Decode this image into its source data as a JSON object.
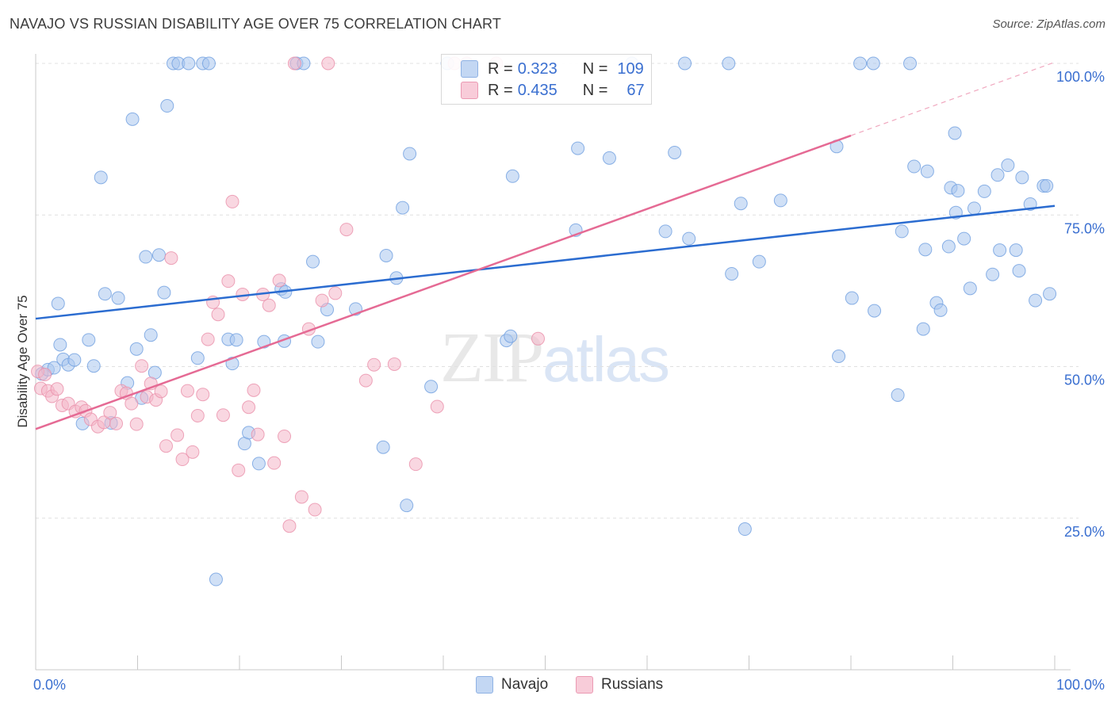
{
  "title": "NAVAJO VS RUSSIAN DISABILITY AGE OVER 75 CORRELATION CHART",
  "source": "Source: ZipAtlas.com",
  "watermark": {
    "zip": "ZIP",
    "atlas": "atlas"
  },
  "legend_top": {
    "rows": [
      {
        "r_label": "R =",
        "r_value": "0.323",
        "n_label": "N =",
        "n_value": "109",
        "color": "#a9c6ee"
      },
      {
        "r_label": "R =",
        "r_value": "0.435",
        "n_label": "N =",
        "n_value": "67",
        "color": "#f4b6c8"
      }
    ]
  },
  "legend_bottom": [
    {
      "label": "Navajo",
      "color": "#a9c6ee"
    },
    {
      "label": "Russians",
      "color": "#f4b6c8"
    }
  ],
  "chart_data": {
    "type": "scatter",
    "title": "NAVAJO VS RUSSIAN DISABILITY AGE OVER 75 CORRELATION CHART",
    "xlabel": "",
    "ylabel": "Disability Age Over 75",
    "xlim": [
      0,
      100
    ],
    "ylim": [
      0,
      100
    ],
    "x_tick_labels": [
      "0.0%",
      "100.0%"
    ],
    "y_tick_labels": [
      {
        "value": 25,
        "label": "25.0%"
      },
      {
        "value": 50,
        "label": "50.0%"
      },
      {
        "value": 75,
        "label": "75.0%"
      },
      {
        "value": 100,
        "label": "100.0%"
      }
    ],
    "grid": true,
    "legend_position": "bottom-center",
    "series": [
      {
        "name": "Navajo",
        "color": "#6f9fe0",
        "fill": "#a9c6ee",
        "trend": {
          "x": [
            0,
            100
          ],
          "y": [
            57.9,
            76.5
          ],
          "color": "#2b6cd0"
        },
        "points": [
          [
            0.6,
            48.8
          ],
          [
            1.2,
            49.5
          ],
          [
            1.8,
            49.8
          ],
          [
            2.2,
            60.4
          ],
          [
            2.4,
            53.6
          ],
          [
            2.7,
            51.2
          ],
          [
            3.2,
            50.3
          ],
          [
            3.8,
            51.1
          ],
          [
            4.6,
            40.6
          ],
          [
            5.2,
            54.4
          ],
          [
            5.7,
            50.1
          ],
          [
            6.4,
            81.2
          ],
          [
            6.8,
            62.0
          ],
          [
            7.4,
            40.7
          ],
          [
            8.1,
            61.3
          ],
          [
            9.0,
            47.3
          ],
          [
            9.5,
            90.8
          ],
          [
            9.9,
            52.9
          ],
          [
            10.4,
            44.8
          ],
          [
            10.8,
            68.1
          ],
          [
            11.3,
            55.2
          ],
          [
            11.7,
            49.0
          ],
          [
            12.1,
            68.4
          ],
          [
            12.6,
            62.2
          ],
          [
            12.9,
            93.0
          ],
          [
            13.5,
            100
          ],
          [
            14.0,
            100
          ],
          [
            15.0,
            100
          ],
          [
            15.9,
            51.4
          ],
          [
            16.4,
            100
          ],
          [
            17.0,
            100
          ],
          [
            17.7,
            14.9
          ],
          [
            18.9,
            54.5
          ],
          [
            19.3,
            50.5
          ],
          [
            19.7,
            54.4
          ],
          [
            20.5,
            37.3
          ],
          [
            20.9,
            39.1
          ],
          [
            21.9,
            34.0
          ],
          [
            22.4,
            54.1
          ],
          [
            24.1,
            62.8
          ],
          [
            24.4,
            54.2
          ],
          [
            24.5,
            62.3
          ],
          [
            25.6,
            100
          ],
          [
            26.3,
            100
          ],
          [
            27.2,
            67.3
          ],
          [
            27.7,
            54.1
          ],
          [
            28.6,
            59.4
          ],
          [
            31.4,
            59.5
          ],
          [
            34.1,
            36.7
          ],
          [
            34.4,
            68.3
          ],
          [
            35.4,
            64.6
          ],
          [
            36.0,
            76.2
          ],
          [
            36.4,
            27.1
          ],
          [
            36.7,
            85.1
          ],
          [
            38.8,
            46.7
          ],
          [
            40.4,
            100
          ],
          [
            46.2,
            54.3
          ],
          [
            46.6,
            55.0
          ],
          [
            46.8,
            81.4
          ],
          [
            53.0,
            72.5
          ],
          [
            53.2,
            86.0
          ],
          [
            56.3,
            84.4
          ],
          [
            58.5,
            100
          ],
          [
            61.8,
            72.3
          ],
          [
            62.7,
            85.3
          ],
          [
            63.7,
            100
          ],
          [
            64.1,
            71.1
          ],
          [
            68.0,
            100
          ],
          [
            68.3,
            65.3
          ],
          [
            69.2,
            76.9
          ],
          [
            69.6,
            23.2
          ],
          [
            71.0,
            67.3
          ],
          [
            73.1,
            77.4
          ],
          [
            78.6,
            86.3
          ],
          [
            78.8,
            51.7
          ],
          [
            80.1,
            61.3
          ],
          [
            80.9,
            100
          ],
          [
            82.2,
            100
          ],
          [
            82.3,
            59.2
          ],
          [
            84.6,
            45.3
          ],
          [
            85.0,
            72.3
          ],
          [
            85.8,
            100
          ],
          [
            86.2,
            83.0
          ],
          [
            87.1,
            56.2
          ],
          [
            87.3,
            69.3
          ],
          [
            87.5,
            82.2
          ],
          [
            88.4,
            60.5
          ],
          [
            88.8,
            59.3
          ],
          [
            89.6,
            69.8
          ],
          [
            89.8,
            79.5
          ],
          [
            90.2,
            88.5
          ],
          [
            90.3,
            75.4
          ],
          [
            90.5,
            79.0
          ],
          [
            91.1,
            71.1
          ],
          [
            91.7,
            62.9
          ],
          [
            92.1,
            76.1
          ],
          [
            93.1,
            78.9
          ],
          [
            93.9,
            65.2
          ],
          [
            94.4,
            81.6
          ],
          [
            94.6,
            69.2
          ],
          [
            95.4,
            83.2
          ],
          [
            96.2,
            69.2
          ],
          [
            96.5,
            65.8
          ],
          [
            96.8,
            81.2
          ],
          [
            97.6,
            76.8
          ],
          [
            98.1,
            60.9
          ],
          [
            98.9,
            79.8
          ],
          [
            99.2,
            79.8
          ],
          [
            99.5,
            62.0
          ]
        ]
      },
      {
        "name": "Russians",
        "color": "#ea90aa",
        "fill": "#f4b6c8",
        "trend": {
          "x": [
            0,
            80
          ],
          "y": [
            39.7,
            88.1
          ],
          "color": "#e56a94"
        },
        "trend_extension": {
          "x": [
            80,
            100
          ],
          "y": [
            88.1,
            100.2
          ]
        },
        "points": [
          [
            0.2,
            49.2
          ],
          [
            0.5,
            46.4
          ],
          [
            0.9,
            48.7
          ],
          [
            1.2,
            46.0
          ],
          [
            1.6,
            45.1
          ],
          [
            2.1,
            46.3
          ],
          [
            2.6,
            43.6
          ],
          [
            3.2,
            43.9
          ],
          [
            3.9,
            42.6
          ],
          [
            4.5,
            43.3
          ],
          [
            4.9,
            42.7
          ],
          [
            5.4,
            41.3
          ],
          [
            6.1,
            40.1
          ],
          [
            6.7,
            40.8
          ],
          [
            7.3,
            42.4
          ],
          [
            7.9,
            40.6
          ],
          [
            8.4,
            46.0
          ],
          [
            8.9,
            45.6
          ],
          [
            9.4,
            43.9
          ],
          [
            9.9,
            40.5
          ],
          [
            10.4,
            50.1
          ],
          [
            10.9,
            45.0
          ],
          [
            11.3,
            47.2
          ],
          [
            11.8,
            44.5
          ],
          [
            12.3,
            45.9
          ],
          [
            12.8,
            36.9
          ],
          [
            13.3,
            67.9
          ],
          [
            13.9,
            38.7
          ],
          [
            14.4,
            34.7
          ],
          [
            14.9,
            46.0
          ],
          [
            15.4,
            35.9
          ],
          [
            15.9,
            41.9
          ],
          [
            16.4,
            45.4
          ],
          [
            16.9,
            54.5
          ],
          [
            17.4,
            60.6
          ],
          [
            17.9,
            58.6
          ],
          [
            18.4,
            42.0
          ],
          [
            18.9,
            64.1
          ],
          [
            19.3,
            77.2
          ],
          [
            19.9,
            32.9
          ],
          [
            20.3,
            61.9
          ],
          [
            20.9,
            43.3
          ],
          [
            21.4,
            46.1
          ],
          [
            21.8,
            38.8
          ],
          [
            22.3,
            61.9
          ],
          [
            22.9,
            60.1
          ],
          [
            23.4,
            34.1
          ],
          [
            23.9,
            64.2
          ],
          [
            24.4,
            38.5
          ],
          [
            24.9,
            23.7
          ],
          [
            25.4,
            100
          ],
          [
            26.1,
            28.5
          ],
          [
            26.8,
            56.2
          ],
          [
            27.4,
            26.4
          ],
          [
            28.1,
            60.9
          ],
          [
            28.7,
            100
          ],
          [
            29.4,
            62.1
          ],
          [
            30.5,
            72.6
          ],
          [
            32.4,
            47.7
          ],
          [
            33.2,
            50.3
          ],
          [
            35.2,
            50.4
          ],
          [
            37.3,
            33.9
          ],
          [
            39.4,
            43.4
          ],
          [
            41.1,
            100
          ],
          [
            42.3,
            100
          ],
          [
            45.2,
            100
          ],
          [
            49.3,
            54.6
          ]
        ]
      }
    ]
  }
}
